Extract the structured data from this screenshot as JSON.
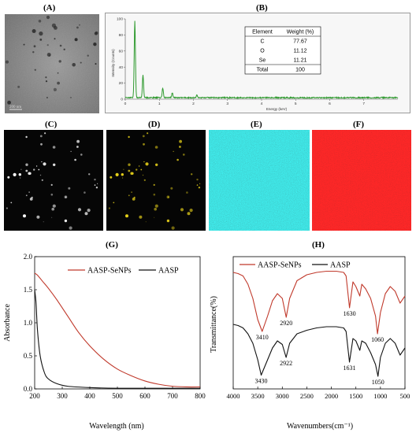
{
  "panels": {
    "A": "(A)",
    "B": "(B)",
    "C": "(C)",
    "D": "(D)",
    "E": "(E)",
    "F": "(F)",
    "G": "(G)",
    "H": "(H)"
  },
  "micrograph": {
    "scale_text": "200 nm"
  },
  "colors": {
    "tem_bg": "#8c8c8c",
    "eds_spectrum": "#2f9a2f",
    "map_c": "#1d8f8f",
    "map_o": "#b81c1c",
    "aasp_senps": "#c0392b",
    "aasp": "#111111"
  },
  "chart_data": [
    {
      "panel": "B",
      "type": "line",
      "xlabel": "Energy (keV)",
      "ylabel": "Intensity (Counts)",
      "xlim": [
        0,
        8
      ],
      "ylim": [
        0,
        100
      ],
      "xticks": [
        0,
        1,
        2,
        3,
        4,
        5,
        6,
        7
      ],
      "yticks": [
        0,
        20,
        40,
        60,
        80,
        100
      ],
      "peaks": [
        {
          "x": 0.28,
          "y": 96
        },
        {
          "x": 0.52,
          "y": 28
        },
        {
          "x": 1.1,
          "y": 12
        },
        {
          "x": 1.38,
          "y": 6
        },
        {
          "x": 2.1,
          "y": 3
        }
      ],
      "table": {
        "headers": [
          "Element",
          "Weight (%)"
        ],
        "rows": [
          [
            "C",
            "77.67"
          ],
          [
            "O",
            "11.12"
          ],
          [
            "Se",
            "11.21"
          ]
        ],
        "total": [
          "Total",
          "100"
        ]
      }
    },
    {
      "panel": "G",
      "type": "line",
      "xlabel": "Wavelength (nm)",
      "ylabel": "Absorbance",
      "xlim": [
        200,
        800
      ],
      "ylim": [
        0,
        2.0
      ],
      "xticks": [
        200,
        300,
        400,
        500,
        600,
        700,
        800
      ],
      "yticks": [
        0.0,
        0.5,
        1.0,
        1.5,
        2.0
      ],
      "ytick_labels": [
        "0.0",
        "0.5",
        "1.0",
        "1.5",
        "2.0"
      ],
      "legend": "top-right",
      "series": [
        {
          "name": "AASP-SeNPs",
          "x": [
            200,
            210,
            230,
            250,
            280,
            320,
            360,
            400,
            450,
            500,
            550,
            600,
            650,
            700,
            750,
            800
          ],
          "y": [
            1.75,
            1.72,
            1.62,
            1.52,
            1.35,
            1.1,
            0.85,
            0.65,
            0.45,
            0.3,
            0.2,
            0.12,
            0.07,
            0.04,
            0.03,
            0.03
          ]
        },
        {
          "name": "AASP",
          "x": [
            200,
            205,
            210,
            220,
            235,
            250,
            280,
            320,
            400,
            500,
            600,
            700,
            800
          ],
          "y": [
            1.5,
            1.3,
            0.9,
            0.5,
            0.25,
            0.15,
            0.08,
            0.04,
            0.02,
            0.01,
            0.01,
            0.01,
            0.01
          ]
        }
      ]
    },
    {
      "panel": "H",
      "type": "line",
      "xlabel": "Wavenumbers(cm⁻¹)",
      "ylabel": "Transmittance(%)",
      "xlim": [
        4000,
        500
      ],
      "xticks": [
        4000,
        3500,
        3000,
        2500,
        2000,
        1500,
        1000,
        500
      ],
      "legend": "top-left",
      "series": [
        {
          "name": "AASP-SeNPs",
          "x": [
            4000,
            3900,
            3800,
            3700,
            3600,
            3500,
            3410,
            3300,
            3200,
            3100,
            3000,
            2920,
            2850,
            2700,
            2500,
            2300,
            2100,
            1900,
            1750,
            1700,
            1630,
            1560,
            1500,
            1420,
            1380,
            1300,
            1200,
            1100,
            1060,
            1000,
            900,
            800,
            700,
            600,
            500
          ],
          "y": [
            92,
            91,
            89,
            82,
            70,
            52,
            42,
            55,
            68,
            74,
            70,
            54,
            70,
            85,
            90,
            92,
            93,
            93,
            92,
            89,
            62,
            84,
            80,
            72,
            82,
            78,
            70,
            55,
            40,
            58,
            74,
            80,
            76,
            66,
            72
          ]
        },
        {
          "name": "AASP",
          "x": [
            4000,
            3900,
            3800,
            3700,
            3600,
            3500,
            3430,
            3300,
            3200,
            3100,
            3000,
            2922,
            2850,
            2700,
            2500,
            2300,
            2100,
            1900,
            1750,
            1700,
            1631,
            1560,
            1500,
            1420,
            1380,
            1300,
            1200,
            1100,
            1050,
            1000,
            900,
            800,
            700,
            600,
            500
          ],
          "y": [
            48,
            47,
            45,
            40,
            32,
            18,
            5,
            18,
            28,
            34,
            31,
            20,
            32,
            40,
            43,
            45,
            46,
            46,
            45,
            42,
            16,
            36,
            34,
            26,
            34,
            32,
            24,
            14,
            4,
            20,
            32,
            36,
            32,
            22,
            28
          ]
        }
      ],
      "annotations": [
        {
          "text": "3410",
          "x": 3410,
          "y": 42,
          "series": "AASP-SeNPs"
        },
        {
          "text": "2920",
          "x": 2920,
          "y": 54,
          "series": "AASP-SeNPs"
        },
        {
          "text": "1630",
          "x": 1630,
          "y": 62,
          "series": "AASP-SeNPs"
        },
        {
          "text": "1060",
          "x": 1060,
          "y": 40,
          "series": "AASP-SeNPs"
        },
        {
          "text": "3430",
          "x": 3430,
          "y": 5,
          "series": "AASP"
        },
        {
          "text": "2922",
          "x": 2922,
          "y": 20,
          "series": "AASP"
        },
        {
          "text": "1631",
          "x": 1631,
          "y": 16,
          "series": "AASP"
        },
        {
          "text": "1050",
          "x": 1050,
          "y": 4,
          "series": "AASP"
        }
      ]
    }
  ]
}
